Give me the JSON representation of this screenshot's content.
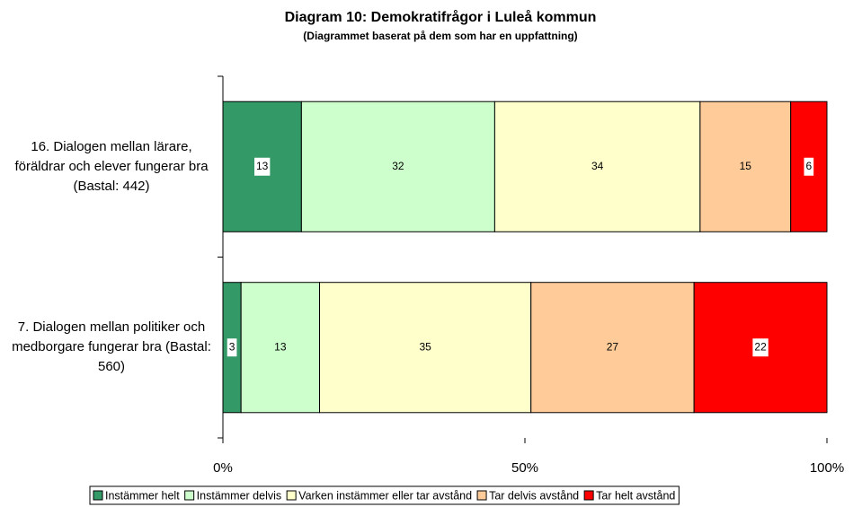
{
  "chart_data": {
    "type": "stacked_barh",
    "title": "Diagram 10: Demokratifrågor i Luleå kommun",
    "subtitle": "(Diagrammet baserat på dem som har en uppfattning)",
    "categories": [
      "16. Dialogen mellan lärare, föräldrar och elever fungerar bra (Bastal: 442)",
      "7. Dialogen mellan politiker och medborgare fungerar bra (Bastal: 560)"
    ],
    "series": [
      {
        "name": "Instämmer helt",
        "color": "#339966",
        "values": [
          13,
          3
        ]
      },
      {
        "name": "Instämmer delvis",
        "color": "#ccffcc",
        "values": [
          32,
          13
        ]
      },
      {
        "name": "Varken instämmer eller tar avstånd",
        "color": "#ffffcc",
        "values": [
          34,
          35
        ]
      },
      {
        "name": "Tar delvis avstånd",
        "color": "#ffcc99",
        "values": [
          15,
          27
        ]
      },
      {
        "name": "Tar helt avstånd",
        "color": "#ff0000",
        "values": [
          6,
          22
        ]
      }
    ],
    "xlim": [
      0,
      100
    ],
    "xticks": [
      {
        "value": 0,
        "label": "0%"
      },
      {
        "value": 50,
        "label": "50%"
      },
      {
        "value": 100,
        "label": "100%"
      }
    ],
    "legend": "bottom"
  }
}
